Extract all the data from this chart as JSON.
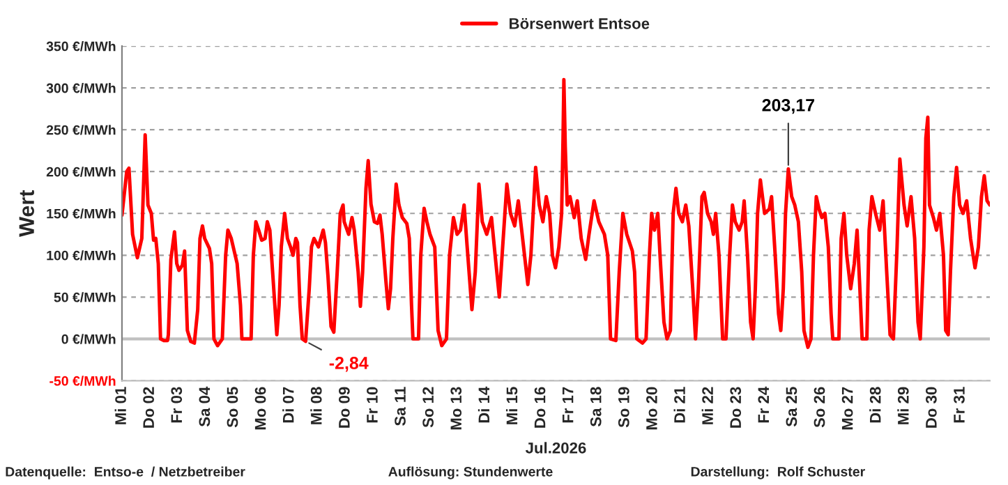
{
  "chart_data": {
    "type": "line",
    "xlabel": "Jul.2026",
    "ylabel": "Wert",
    "series": [
      {
        "name": "Börsenwert Entsoe",
        "color": "#ff0000",
        "x": [
          "2026-07-01T00:00",
          "2026-07-01T04:05",
          "2026-07-01T06:00",
          "2026-07-01T09:07",
          "2026-07-01T13:12",
          "2026-07-01T17:02",
          "2026-07-01T19:55",
          "2026-07-01T22:19",
          "2026-07-02T01:12",
          "2026-07-02T03:07",
          "2026-07-02T05:02",
          "2026-07-02T07:12",
          "2026-07-02T09:07",
          "2026-07-02T12:00",
          "2026-07-02T15:07",
          "2026-07-02T15:50",
          "2026-07-02T18:00",
          "2026-07-02T21:07",
          "2026-07-02T23:02",
          "2026-07-03T00:58",
          "2026-07-03T03:50",
          "2026-07-03T05:46",
          "2026-07-03T08:10",
          "2026-07-03T11:02",
          "2026-07-03T14:10",
          "2026-07-03T17:02",
          "2026-07-03T18:58",
          "2026-07-03T21:07",
          "2026-07-03T23:02",
          "2026-07-04T03:07",
          "2026-07-04T05:02",
          "2026-07-04T06:58",
          "2026-07-04T10:05",
          "2026-07-04T14:10",
          "2026-07-04T17:02",
          "2026-07-04T18:58",
          "2026-07-04T21:50",
          "2026-07-05T02:53",
          "2026-07-05T05:46",
          "2026-07-05T06:58",
          "2026-07-05T14:53",
          "2026-07-05T16:48",
          "2026-07-05T18:58",
          "2026-07-05T21:22",
          "2026-07-06T00:00",
          "2026-07-06T02:53",
          "2026-07-06T04:48",
          "2026-07-06T06:58",
          "2026-07-06T10:48",
          "2026-07-06T12:58",
          "2026-07-06T14:53",
          "2026-07-06T16:48",
          "2026-07-06T19:41",
          "2026-07-06T22:05",
          "2026-07-07T00:43",
          "2026-07-07T02:53",
          "2026-07-07T05:17",
          "2026-07-07T06:43",
          "2026-07-07T08:53",
          "2026-07-07T10:48",
          "2026-07-07T13:41",
          "2026-07-07T16:48",
          "2026-07-07T18:43",
          "2026-07-07T20:53",
          "2026-07-08T00:43",
          "2026-07-08T04:48",
          "2026-07-08T06:43",
          "2026-07-08T08:53",
          "2026-07-08T11:31",
          "2026-07-08T13:55",
          "2026-07-08T16:48",
          "2026-07-08T19:26",
          "2026-07-08T21:50",
          "2026-07-08T22:48",
          "2026-07-09T02:38",
          "2026-07-09T05:31",
          "2026-07-09T07:26",
          "2026-07-09T10:48",
          "2026-07-09T12:43",
          "2026-07-09T14:38",
          "2026-07-09T17:31",
          "2026-07-09T19:26",
          "2026-07-09T21:50",
          "2026-07-10T00:43",
          "2026-07-10T03:22",
          "2026-07-10T05:31",
          "2026-07-10T07:26",
          "2026-07-10T10:34",
          "2026-07-10T12:43",
          "2026-07-10T14:38",
          "2026-07-10T16:34",
          "2026-07-10T19:26",
          "2026-07-10T21:50",
          "2026-07-11T00:43",
          "2026-07-11T04:34",
          "2026-07-11T06:43",
          "2026-07-11T08:38",
          "2026-07-11T09:50",
          "2026-07-11T14:38",
          "2026-07-11T16:34",
          "2026-07-11T19:26",
          "2026-07-11T21:50",
          "2026-07-12T00:29",
          "2026-07-12T04:34",
          "2026-07-12T07:26",
          "2026-07-12T10:34",
          "2026-07-12T14:38",
          "2026-07-12T17:17",
          "2026-07-12T20:38",
          "2026-07-12T23:46",
          "2026-07-13T02:38",
          "2026-07-13T05:46",
          "2026-07-13T08:24",
          "2026-07-13T12:29",
          "2026-07-13T15:22",
          "2026-07-13T18:29",
          "2026-07-13T21:22",
          "2026-07-14T01:12",
          "2026-07-14T05:17",
          "2026-07-14T08:24",
          "2026-07-14T12:00",
          "2026-07-14T14:24",
          "2026-07-14T18:29",
          "2026-07-14T21:36",
          "2026-07-15T01:12",
          "2026-07-15T04:19",
          "2026-07-15T07:12",
          "2026-07-15T12:29",
          "2026-07-15T15:07",
          "2026-07-15T19:12",
          "2026-07-15T22:19",
          "2026-07-16T01:26",
          "2026-07-16T04:19",
          "2026-07-16T07:12",
          "2026-07-16T09:36",
          "2026-07-16T12:14",
          "2026-07-16T15:07",
          "2026-07-16T17:31",
          "2026-07-16T18:43",
          "2026-07-16T19:26",
          "2026-07-16T20:38",
          "2026-07-16T22:19",
          "2026-07-17T00:43",
          "2026-07-17T04:19",
          "2026-07-17T06:58",
          "2026-07-17T10:19",
          "2026-07-17T14:10",
          "2026-07-17T17:02",
          "2026-07-17T21:22",
          "2026-07-18T01:26",
          "2026-07-18T06:14",
          "2026-07-18T09:07",
          "2026-07-18T11:31",
          "2026-07-18T16:05",
          "2026-07-18T18:58",
          "2026-07-18T22:05",
          "2026-07-19T01:26",
          "2026-07-19T06:14",
          "2026-07-19T08:10",
          "2026-07-19T10:05",
          "2026-07-19T14:53",
          "2026-07-19T18:00",
          "2026-07-19T20:53",
          "2026-07-19T22:48",
          "2026-07-20T01:12",
          "2026-07-20T04:05",
          "2026-07-20T06:00",
          "2026-07-20T09:22",
          "2026-07-20T12:00",
          "2026-07-20T14:53",
          "2026-07-20T17:17",
          "2026-07-20T19:41",
          "2026-07-20T22:05",
          "2026-07-21T01:12",
          "2026-07-21T04:05",
          "2026-07-21T06:43",
          "2026-07-21T10:05",
          "2026-07-21T12:29",
          "2026-07-21T14:53",
          "2026-07-21T18:00",
          "2026-07-21T19:55",
          "2026-07-21T22:48",
          "2026-07-22T01:55",
          "2026-07-22T03:50",
          "2026-07-22T05:46",
          "2026-07-22T08:38",
          "2026-07-22T11:46",
          "2026-07-22T14:38",
          "2026-07-22T17:46",
          "2026-07-22T20:10",
          "2026-07-22T22:34",
          "2026-07-23T01:55",
          "2026-07-23T04:34",
          "2026-07-23T06:14",
          "2026-07-23T09:07",
          "2026-07-23T11:46",
          "2026-07-23T13:55",
          "2026-07-23T15:50",
          "2026-07-23T17:46",
          "2026-07-23T20:10",
          "2026-07-23T23:46",
          "2026-07-24T03:50",
          "2026-07-24T05:46",
          "2026-07-24T08:53",
          "2026-07-24T11:46",
          "2026-07-24T13:41",
          "2026-07-24T15:50",
          "2026-07-24T17:46",
          "2026-07-24T20:10",
          "2026-07-24T23:02",
          "2026-07-25T01:41",
          "2026-07-25T04:48",
          "2026-07-25T07:41",
          "2026-07-25T09:36",
          "2026-07-25T12:58",
          "2026-07-25T15:36",
          "2026-07-25T17:46",
          "2026-07-25T20:10",
          "2026-07-25T22:34",
          "2026-07-26T00:58",
          "2026-07-26T03:36",
          "2026-07-26T06:29",
          "2026-07-26T08:53",
          "2026-07-26T10:19",
          "2026-07-26T15:36",
          "2026-07-26T17:31",
          "2026-07-26T19:55",
          "2026-07-26T22:19",
          "2026-07-27T01:41",
          "2026-07-27T04:48",
          "2026-07-27T07:12",
          "2026-07-27T09:36",
          "2026-07-27T11:31",
          "2026-07-27T15:36",
          "2026-07-27T17:31",
          "2026-07-27T19:55",
          "2026-07-27T23:02",
          "2026-07-28T02:38",
          "2026-07-28T05:31",
          "2026-07-28T08:38",
          "2026-07-28T11:31",
          "2026-07-28T14:24",
          "2026-07-28T17:31",
          "2026-07-28T19:55",
          "2026-07-28T23:31",
          "2026-07-29T02:10",
          "2026-07-29T05:31",
          "2026-07-29T08:38",
          "2026-07-29T11:31",
          "2026-07-29T13:26",
          "2026-07-29T16:34",
          "2026-07-29T18:14",
          "2026-07-29T19:55",
          "2026-07-29T21:22",
          "2026-07-30T00:43",
          "2026-07-30T03:22",
          "2026-07-30T06:14",
          "2026-07-30T09:22",
          "2026-07-30T11:17",
          "2026-07-30T13:26",
          "2026-07-30T15:22",
          "2026-07-30T18:14",
          "2026-07-30T20:38",
          "2026-07-30T23:17",
          "2026-07-31T02:10",
          "2026-07-31T05:17",
          "2026-07-31T08:38",
          "2026-07-31T12:29",
          "2026-07-31T15:22",
          "2026-07-31T18:00",
          "2026-07-31T20:24",
          "2026-07-31T22:48",
          "2026-08-01T01:12"
        ],
        "values": [
          148,
          200,
          204,
          125,
          97,
          120,
          244,
          160,
          150,
          118,
          120,
          90,
          0,
          -2,
          -2,
          5,
          95,
          128,
          90,
          82,
          88,
          105,
          10,
          -3,
          -5,
          35,
          120,
          135,
          120,
          108,
          90,
          0,
          -8,
          0,
          100,
          130,
          120,
          90,
          40,
          0,
          0,
          100,
          140,
          130,
          118,
          120,
          140,
          130,
          50,
          5,
          40,
          110,
          150,
          120,
          110,
          100,
          120,
          115,
          40,
          0,
          -2.84,
          60,
          110,
          120,
          110,
          130,
          115,
          75,
          15,
          8,
          80,
          150,
          160,
          140,
          125,
          145,
          130,
          80,
          39,
          80,
          180,
          213,
          161,
          140,
          138,
          148,
          125,
          70,
          36,
          60,
          120,
          185,
          160,
          145,
          138,
          120,
          40,
          0,
          0,
          100,
          156,
          140,
          125,
          110,
          10,
          -8,
          0,
          100,
          145,
          125,
          130,
          160,
          110,
          35,
          80,
          185,
          140,
          125,
          145,
          100,
          50,
          100,
          185,
          150,
          135,
          165,
          130,
          65,
          100,
          205,
          160,
          140,
          170,
          150,
          100,
          85,
          110,
          150,
          240,
          310,
          230,
          160,
          170,
          145,
          165,
          120,
          95,
          125,
          165,
          140,
          125,
          100,
          0,
          -2,
          80,
          150,
          125,
          105,
          80,
          0,
          -5,
          0,
          100,
          150,
          130,
          150,
          100,
          20,
          0,
          10,
          150,
          180,
          150,
          140,
          160,
          135,
          60,
          0,
          60,
          170,
          175,
          150,
          140,
          125,
          150,
          100,
          0,
          0,
          100,
          160,
          140,
          130,
          140,
          165,
          100,
          20,
          0,
          60,
          150,
          190,
          150,
          155,
          170,
          100,
          30,
          10,
          60,
          150,
          203.17,
          170,
          160,
          140,
          80,
          10,
          -10,
          0,
          100,
          170,
          155,
          145,
          150,
          110,
          30,
          0,
          0,
          120,
          150,
          100,
          60,
          90,
          130,
          60,
          0,
          0,
          130,
          170,
          150,
          130,
          165,
          80,
          5,
          0,
          110,
          215,
          160,
          135,
          170,
          120,
          20,
          0,
          110,
          240,
          265,
          160,
          145,
          130,
          150,
          100,
          10,
          5,
          80,
          170,
          205,
          160,
          150,
          165,
          120,
          85,
          110,
          170,
          195,
          165,
          160
        ]
      }
    ],
    "xlim": [
      "2026-07-01",
      "2026-08-01T01:12"
    ],
    "xticks": [
      {
        "value": "2026-07-01",
        "label": "Mi 01"
      },
      {
        "value": "2026-07-02",
        "label": "Do 02"
      },
      {
        "value": "2026-07-03",
        "label": "Fr 03"
      },
      {
        "value": "2026-07-04",
        "label": "Sa 04"
      },
      {
        "value": "2026-07-05",
        "label": "So 05"
      },
      {
        "value": "2026-07-06",
        "label": "Mo 06"
      },
      {
        "value": "2026-07-07",
        "label": "Di 07"
      },
      {
        "value": "2026-07-08",
        "label": "Mi 08"
      },
      {
        "value": "2026-07-09",
        "label": "Do 09"
      },
      {
        "value": "2026-07-10",
        "label": "Fr 10"
      },
      {
        "value": "2026-07-11",
        "label": "Sa 11"
      },
      {
        "value": "2026-07-12",
        "label": "So 12"
      },
      {
        "value": "2026-07-13",
        "label": "Mo 13"
      },
      {
        "value": "2026-07-14",
        "label": "Di 14"
      },
      {
        "value": "2026-07-15",
        "label": "Mi 15"
      },
      {
        "value": "2026-07-16",
        "label": "Do 16"
      },
      {
        "value": "2026-07-17",
        "label": "Fr 17"
      },
      {
        "value": "2026-07-18",
        "label": "Sa 18"
      },
      {
        "value": "2026-07-19",
        "label": "So 19"
      },
      {
        "value": "2026-07-20",
        "label": "Mo 20"
      },
      {
        "value": "2026-07-21",
        "label": "Di 21"
      },
      {
        "value": "2026-07-22",
        "label": "Mi 22"
      },
      {
        "value": "2026-07-23",
        "label": "Do 23"
      },
      {
        "value": "2026-07-24",
        "label": "Fr 24"
      },
      {
        "value": "2026-07-25",
        "label": "Sa 25"
      },
      {
        "value": "2026-07-26",
        "label": "So 26"
      },
      {
        "value": "2026-07-27",
        "label": "Mo 27"
      },
      {
        "value": "2026-07-28",
        "label": "Di 28"
      },
      {
        "value": "2026-07-29",
        "label": "Mi 29"
      },
      {
        "value": "2026-07-30",
        "label": "Do 30"
      },
      {
        "value": "2026-07-31",
        "label": "Fr 31"
      }
    ],
    "ylim": [
      -50,
      350
    ],
    "yticks": [
      {
        "value": -50,
        "label": "-50 €/MWh"
      },
      {
        "value": 0,
        "label": "0 €/MWh"
      },
      {
        "value": 50,
        "label": "50 €/MWh"
      },
      {
        "value": 100,
        "label": "100 €/MWh"
      },
      {
        "value": 150,
        "label": "150 €/MWh"
      },
      {
        "value": 200,
        "label": "200 €/MWh"
      },
      {
        "value": 250,
        "label": "250 €/MWh"
      },
      {
        "value": 300,
        "label": "300 €/MWh"
      },
      {
        "value": 350,
        "label": "350 €/MWh"
      }
    ],
    "ref_lines": [
      {
        "axis": "y",
        "value": 0,
        "color": "#c0c0c0",
        "line_style": "solid"
      }
    ],
    "grid": "y",
    "legend": "top",
    "marker": "none",
    "line_style": "solid",
    "annotations": [
      {
        "text": "-2,84",
        "x": "2026-07-07T13:41",
        "y": -2.84
      },
      {
        "text": "203,17",
        "x": "2026-07-24T20:10",
        "y": 203.17
      },
      "Datenquelle:  Entso-e  / Netzbetreiber",
      "Auflösung: Stundenwerte",
      "Darstellung:  Rolf Schuster"
    ]
  }
}
